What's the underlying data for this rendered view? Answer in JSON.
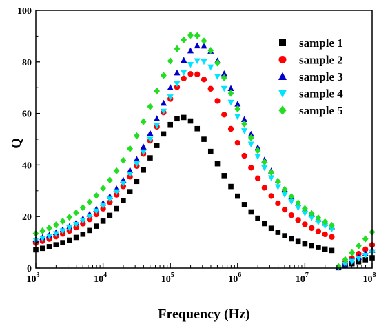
{
  "chart_data": {
    "type": "scatter",
    "title": "",
    "xlabel": "Frequency (Hz)",
    "ylabel": "Q",
    "xscale": "log",
    "xlim": [
      1000,
      100000000
    ],
    "ylim": [
      0,
      100
    ],
    "xtick_labels": [
      {
        "value": 1000,
        "base": "10",
        "exp": "3"
      },
      {
        "value": 10000,
        "base": "10",
        "exp": "4"
      },
      {
        "value": 100000,
        "base": "10",
        "exp": "5"
      },
      {
        "value": 1000000,
        "base": "10",
        "exp": "6"
      },
      {
        "value": 10000000,
        "base": "10",
        "exp": "7"
      },
      {
        "value": 100000000,
        "base": "10",
        "exp": "8"
      }
    ],
    "yticks": [
      "0",
      "20",
      "40",
      "60",
      "80",
      "100"
    ],
    "grid": false,
    "legend_position": "top-right",
    "series": [
      {
        "name": "sample 1",
        "color": "#000000",
        "marker": "square",
        "peak_q": 58,
        "peak_freq": 150000,
        "width": 0.78,
        "dip_freq": 30000000,
        "end_q": 4
      },
      {
        "name": "sample 2",
        "color": "#ff0000",
        "marker": "circle",
        "peak_q": 75,
        "peak_freq": 220000,
        "width": 0.88,
        "dip_freq": 30000000,
        "end_q": 9
      },
      {
        "name": "sample 3",
        "color": "#0000cc",
        "marker": "triangle-up",
        "peak_q": 86,
        "peak_freq": 280000,
        "width": 0.92,
        "dip_freq": 30000000,
        "end_q": 7
      },
      {
        "name": "sample 4",
        "color": "#00e5ff",
        "marker": "triangle-down",
        "peak_q": 80,
        "peak_freq": 270000,
        "width": 0.93,
        "dip_freq": 30000000,
        "end_q": 6
      },
      {
        "name": "sample 5",
        "color": "#22dd22",
        "marker": "diamond",
        "peak_q": 90,
        "peak_freq": 220000,
        "width": 0.96,
        "dip_freq": 30000000,
        "end_q": 14
      }
    ]
  }
}
